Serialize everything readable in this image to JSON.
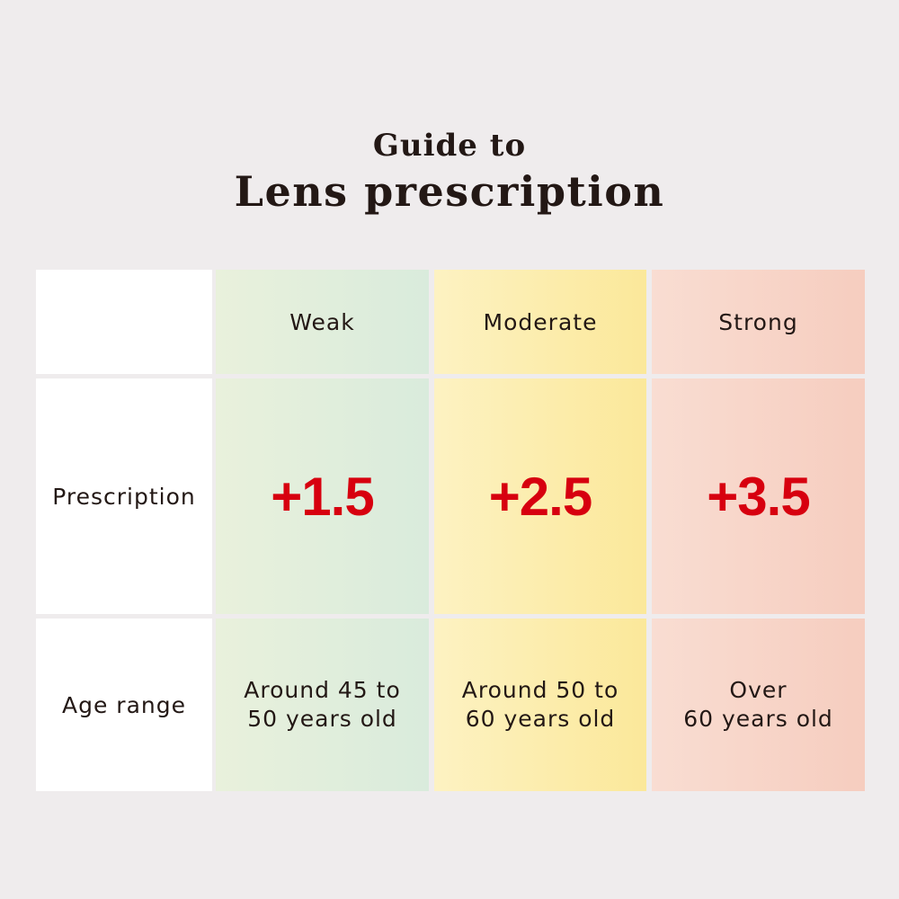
{
  "header": {
    "subtitle": "Guide to",
    "title": "Lens prescription"
  },
  "table": {
    "columns": [
      "Weak",
      "Moderate",
      "Strong"
    ],
    "row_labels": [
      "Prescription",
      "Age range"
    ],
    "prescription": [
      "+1.5",
      "+2.5",
      "+3.5"
    ],
    "age_range": [
      "Around 45 to\n50 years old",
      "Around 50 to\n60 years old",
      "Over\n60 years old"
    ]
  },
  "colors": {
    "weak": "#dcecdc",
    "moderate": "#fbeaa8",
    "strong": "#f7d2c4",
    "value_red": "#d7000f",
    "background": "#efeced"
  }
}
